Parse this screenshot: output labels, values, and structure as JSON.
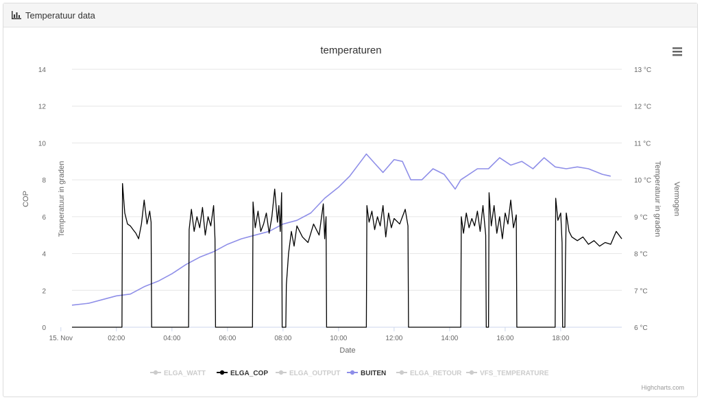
{
  "panel": {
    "title": "Temperatuur data",
    "icon": "bar-chart-icon"
  },
  "menu_icon": "hamburger-menu-icon",
  "credits": "Highcharts.com",
  "chart_data": {
    "type": "line",
    "title": "temperaturen",
    "xlabel": "Date",
    "x_ticks": [
      "15. Nov",
      "02:00",
      "04:00",
      "06:00",
      "08:00",
      "10:00",
      "12:00",
      "14:00",
      "16:00",
      "18:00"
    ],
    "x_tick_hours": [
      0,
      2,
      4,
      6,
      8,
      10,
      12,
      14,
      16,
      18
    ],
    "xlim_hours": [
      0.4,
      20.2
    ],
    "left_axis": {
      "title": "COP",
      "range": [
        0,
        14
      ],
      "ticks": [
        "0",
        "2",
        "4",
        "6",
        "8",
        "10",
        "12",
        "14"
      ]
    },
    "left_inner_axis_title": "Temperatuur in graden",
    "right_axis": {
      "title": "Temperatuur in graden",
      "range": [
        6,
        13
      ],
      "ticks": [
        "6 °C",
        "7 °C",
        "8 °C",
        "9 °C",
        "10 °C",
        "11 °C",
        "12 °C",
        "13 °C"
      ]
    },
    "right_outer_axis_title": "Vermogen",
    "legend": [
      {
        "name": "ELGA_WATT",
        "color": "#cccccc",
        "visible": false
      },
      {
        "name": "ELGA_COP",
        "color": "#000000",
        "visible": true
      },
      {
        "name": "ELGA_OUTPUT",
        "color": "#cccccc",
        "visible": false
      },
      {
        "name": "BUITEN",
        "color": "#8e8ee8",
        "visible": true
      },
      {
        "name": "ELGA_RETOUR",
        "color": "#cccccc",
        "visible": false
      },
      {
        "name": "VFS_TEMPERATURE",
        "color": "#cccccc",
        "visible": false
      }
    ],
    "series": [
      {
        "name": "BUITEN",
        "axis": "right",
        "color": "#8e8ee8",
        "x": [
          0.4,
          1.0,
          1.5,
          2.0,
          2.5,
          3.0,
          3.5,
          4.0,
          4.5,
          5.0,
          5.5,
          6.0,
          6.5,
          7.0,
          7.5,
          8.0,
          8.5,
          9.0,
          9.5,
          10.0,
          10.4,
          10.8,
          11.0,
          11.3,
          11.6,
          12.0,
          12.3,
          12.6,
          13.0,
          13.4,
          13.8,
          14.2,
          14.4,
          14.6,
          15.0,
          15.4,
          15.8,
          16.2,
          16.6,
          17.0,
          17.4,
          17.8,
          18.2,
          18.6,
          19.0,
          19.5,
          19.8
        ],
        "values": [
          6.6,
          6.65,
          6.75,
          6.85,
          6.9,
          7.1,
          7.25,
          7.45,
          7.7,
          7.9,
          8.05,
          8.25,
          8.4,
          8.5,
          8.6,
          8.8,
          8.9,
          9.1,
          9.5,
          9.8,
          10.1,
          10.5,
          10.7,
          10.45,
          10.2,
          10.55,
          10.5,
          10.0,
          10.0,
          10.3,
          10.15,
          9.75,
          10.0,
          10.1,
          10.3,
          10.3,
          10.6,
          10.4,
          10.5,
          10.3,
          10.6,
          10.35,
          10.3,
          10.35,
          10.3,
          10.15,
          10.1
        ]
      },
      {
        "name": "ELGA_COP",
        "axis": "left",
        "color": "#000000",
        "segments": [
          {
            "x": [
              0.4,
              2.2
            ],
            "values": [
              0,
              0
            ]
          },
          {
            "x": [
              2.22,
              2.3,
              2.4,
              2.5,
              2.6,
              2.7,
              2.8,
              2.9,
              3.0,
              3.1,
              3.2,
              3.25
            ],
            "values": [
              7.8,
              6.2,
              5.6,
              5.5,
              5.3,
              5.1,
              4.8,
              5.6,
              6.9,
              5.6,
              6.3,
              5.7
            ]
          },
          {
            "x": [
              3.27,
              4.6
            ],
            "values": [
              0,
              0
            ]
          },
          {
            "x": [
              4.62,
              4.7,
              4.8,
              4.9,
              5.0,
              5.1,
              5.2,
              5.3,
              5.4,
              5.5,
              5.55
            ],
            "values": [
              5.3,
              6.4,
              5.2,
              6.0,
              5.4,
              6.5,
              5.0,
              6.0,
              5.5,
              6.6,
              4.8
            ]
          },
          {
            "x": [
              5.57,
              6.9
            ],
            "values": [
              0,
              0
            ]
          },
          {
            "x": [
              6.92,
              7.0,
              7.1,
              7.2,
              7.3,
              7.4,
              7.5,
              7.6,
              7.7,
              7.8,
              7.85,
              7.9,
              7.95
            ],
            "values": [
              6.8,
              5.4,
              6.3,
              5.2,
              5.6,
              6.2,
              5.1,
              6.0,
              7.5,
              5.7,
              6.6,
              5.2,
              7.3
            ]
          },
          {
            "x": [
              7.97,
              8.1
            ],
            "values": [
              0,
              0
            ]
          },
          {
            "x": [
              8.12,
              8.2,
              8.3,
              8.4,
              8.5,
              8.7,
              8.9,
              9.1,
              9.3,
              9.45,
              9.5,
              9.55
            ],
            "values": [
              2.3,
              4.0,
              5.2,
              4.4,
              5.5,
              4.9,
              4.6,
              5.6,
              5.0,
              6.7,
              4.8,
              6.0
            ]
          },
          {
            "x": [
              9.57,
              11.0
            ],
            "values": [
              0,
              0
            ]
          },
          {
            "x": [
              11.02,
              11.1,
              11.2,
              11.3,
              11.4,
              11.5,
              11.6,
              11.7,
              11.8,
              11.9,
              12.0,
              12.2,
              12.4,
              12.5
            ],
            "values": [
              6.6,
              5.7,
              6.3,
              5.3,
              6.0,
              5.5,
              6.6,
              4.9,
              6.2,
              5.4,
              5.9,
              5.6,
              6.4,
              5.5
            ]
          },
          {
            "x": [
              12.52,
              14.4
            ],
            "values": [
              0,
              0
            ]
          },
          {
            "x": [
              14.42,
              14.5,
              14.6,
              14.7,
              14.8,
              14.9,
              15.0,
              15.1,
              15.2,
              15.3
            ],
            "values": [
              6.0,
              5.1,
              6.2,
              5.4,
              5.9,
              5.5,
              6.3,
              5.2,
              6.6,
              5.0
            ]
          },
          {
            "x": [
              15.32,
              15.4
            ],
            "values": [
              0,
              0
            ]
          },
          {
            "x": [
              15.42,
              15.5,
              15.6,
              15.7,
              15.8,
              15.9,
              16.0,
              16.1,
              16.2,
              16.3,
              16.4
            ],
            "values": [
              7.3,
              5.5,
              6.6,
              5.1,
              6.0,
              4.8,
              6.2,
              5.6,
              6.9,
              5.4,
              6.1
            ]
          },
          {
            "x": [
              16.42,
              17.8
            ],
            "values": [
              0,
              0
            ]
          },
          {
            "x": [
              17.82,
              17.9,
              18.0,
              18.05
            ],
            "values": [
              7.0,
              5.8,
              6.2,
              4.6
            ]
          },
          {
            "x": [
              18.07,
              18.15
            ],
            "values": [
              0,
              0
            ]
          },
          {
            "x": [
              18.17,
              18.2,
              18.3,
              18.4,
              18.6,
              18.8,
              19.0,
              19.2,
              19.4,
              19.6,
              19.8,
              20.0,
              20.2
            ],
            "values": [
              3.6,
              6.2,
              5.2,
              4.9,
              4.7,
              4.9,
              4.5,
              4.7,
              4.4,
              4.6,
              4.5,
              5.2,
              4.8
            ]
          }
        ]
      }
    ]
  }
}
